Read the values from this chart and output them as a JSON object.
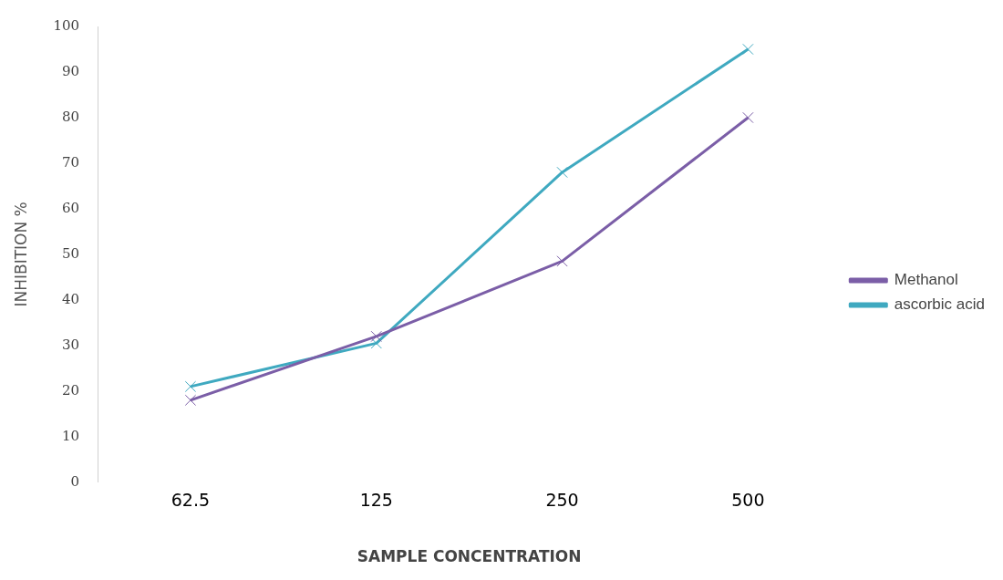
{
  "chart_data": {
    "type": "line",
    "xlabel": "SAMPLE CONCENTRATION",
    "ylabel": "INHIBITION %",
    "categories": [
      "62.5",
      "125",
      "250",
      "500"
    ],
    "series": [
      {
        "name": "Methanol",
        "color": "#7b5ea7",
        "marker": "cross",
        "values": [
          18,
          32,
          48.5,
          80
        ]
      },
      {
        "name": "ascorbic acid",
        "color": "#3fa9c0",
        "marker": "cross",
        "values": [
          21,
          30.5,
          68,
          95
        ]
      }
    ],
    "ylim": [
      0,
      100
    ],
    "yticks": [
      0,
      10,
      20,
      30,
      40,
      50,
      60,
      70,
      80,
      90,
      100
    ],
    "grid": false,
    "legend": "right",
    "line_style": "solid"
  }
}
